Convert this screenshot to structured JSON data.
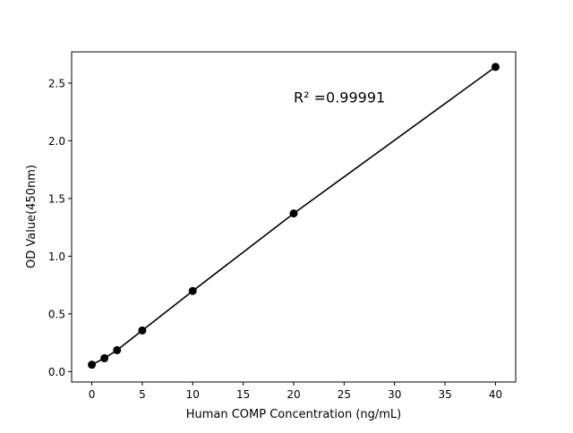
{
  "chart_data": {
    "type": "line",
    "title": "",
    "xlabel": "Human COMP Concentration (ng/mL)",
    "ylabel": "OD Value(450nm)",
    "xlim": [
      -2,
      42
    ],
    "ylim": [
      -0.09,
      2.77
    ],
    "xticks": [
      0,
      5,
      10,
      15,
      20,
      25,
      30,
      35,
      40
    ],
    "yticks": [
      0.0,
      0.5,
      1.0,
      1.5,
      2.0,
      2.5
    ],
    "ytick_labels": [
      "0.0",
      "0.5",
      "1.0",
      "1.5",
      "2.0",
      "2.5"
    ],
    "grid": false,
    "series": [
      {
        "x": [
          0,
          1.25,
          2.5,
          5,
          10,
          20,
          40
        ],
        "y": [
          0.06,
          0.116,
          0.186,
          0.357,
          0.699,
          1.37,
          2.64
        ],
        "color": "#000000",
        "marker": "circle"
      }
    ],
    "annotation": {
      "text": "R² =0.99991",
      "x": 20,
      "y": 2.38
    }
  }
}
